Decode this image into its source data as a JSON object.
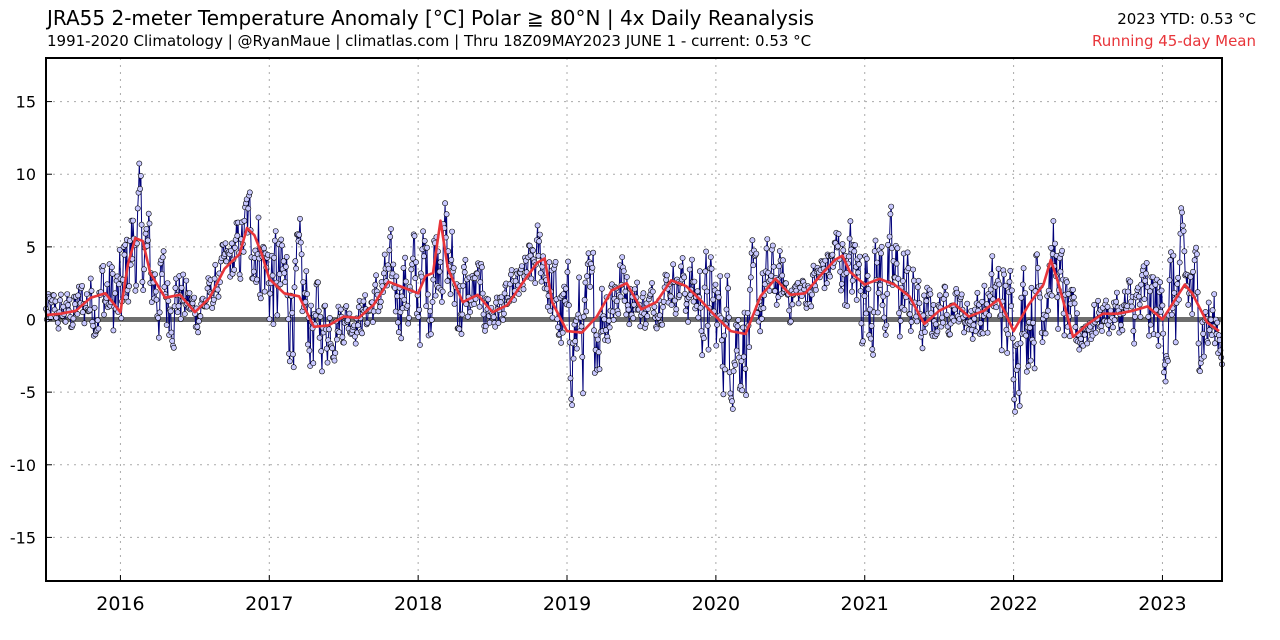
{
  "header": {
    "title": "JRA55 2-meter Temperature Anomaly [°C] Polar ≧ 80°N | 4x Daily Reanalysis",
    "subtitle": "1991-2020 Climatology | @RyanMaue | climatlas.com | Thru 18Z09MAY2023   JUNE 1 - current: 0.53 °C",
    "ytd": "2023 YTD: 0.53 °C",
    "legend_mean": "Running 45-day Mean"
  },
  "colors": {
    "marker_fill": "#c8c8ff",
    "marker_edge": "#000000",
    "series_line": "#00007a",
    "running_mean": "#e8353a",
    "zero_line": "#6e6e6e",
    "grid": "#aaaaaa"
  },
  "chart_data": {
    "type": "line",
    "title": "JRA55 2-meter Temperature Anomaly [°C] Polar ≧ 80°N | 4x Daily Reanalysis",
    "xlabel": "",
    "ylabel": "",
    "xlim": [
      2015.5,
      2023.4
    ],
    "ylim": [
      -18,
      18
    ],
    "yticks": [
      -15,
      -10,
      -5,
      0,
      5,
      10,
      15
    ],
    "xticks": [
      2016,
      2017,
      2018,
      2019,
      2020,
      2021,
      2022,
      2023
    ],
    "grid": true,
    "series": [
      {
        "name": "Running 45-day Mean",
        "x": [
          2015.5,
          2015.6,
          2015.7,
          2015.8,
          2015.9,
          2016.0,
          2016.05,
          2016.1,
          2016.15,
          2016.2,
          2016.3,
          2016.4,
          2016.5,
          2016.6,
          2016.7,
          2016.8,
          2016.85,
          2016.9,
          2016.95,
          2017.0,
          2017.1,
          2017.2,
          2017.3,
          2017.4,
          2017.5,
          2017.6,
          2017.7,
          2017.8,
          2017.9,
          2018.0,
          2018.05,
          2018.1,
          2018.15,
          2018.2,
          2018.3,
          2018.4,
          2018.5,
          2018.6,
          2018.7,
          2018.8,
          2018.85,
          2018.9,
          2019.0,
          2019.1,
          2019.2,
          2019.3,
          2019.4,
          2019.5,
          2019.6,
          2019.7,
          2019.8,
          2019.9,
          2020.0,
          2020.1,
          2020.2,
          2020.3,
          2020.4,
          2020.5,
          2020.6,
          2020.7,
          2020.8,
          2020.85,
          2020.9,
          2021.0,
          2021.1,
          2021.2,
          2021.3,
          2021.4,
          2021.5,
          2021.6,
          2021.7,
          2021.8,
          2021.9,
          2022.0,
          2022.1,
          2022.2,
          2022.25,
          2022.3,
          2022.4,
          2022.5,
          2022.6,
          2022.7,
          2022.8,
          2022.9,
          2023.0,
          2023.1,
          2023.15,
          2023.2,
          2023.3,
          2023.38
        ],
        "values": [
          0.3,
          0.4,
          0.6,
          1.5,
          1.8,
          0.5,
          3.8,
          5.6,
          5.4,
          3.2,
          1.5,
          1.7,
          0.5,
          1.5,
          3.5,
          4.5,
          6.3,
          5.8,
          4.5,
          2.8,
          1.8,
          1.6,
          -0.5,
          -0.4,
          0.2,
          0.1,
          1.0,
          2.6,
          2.2,
          1.8,
          3.0,
          3.2,
          6.8,
          3.5,
          1.2,
          1.7,
          0.5,
          1.0,
          2.5,
          3.9,
          4.2,
          1.2,
          -0.8,
          -0.9,
          0.2,
          2.0,
          2.5,
          0.7,
          1.2,
          2.7,
          2.3,
          1.3,
          0.2,
          -0.8,
          -1.0,
          1.6,
          2.8,
          1.7,
          1.8,
          3.0,
          4.1,
          4.4,
          3.3,
          2.4,
          2.8,
          2.4,
          1.6,
          -0.3,
          0.6,
          1.1,
          0.2,
          0.6,
          1.4,
          -0.8,
          1.0,
          2.4,
          4.1,
          2.5,
          -1.2,
          -0.3,
          0.4,
          0.4,
          0.6,
          0.9,
          0.0,
          1.6,
          2.4,
          1.8,
          -0.2,
          -0.8
        ]
      }
    ],
    "annotations": [
      "2023 YTD: 0.53 °C",
      "JUNE 1 - current: 0.53 °C"
    ]
  }
}
